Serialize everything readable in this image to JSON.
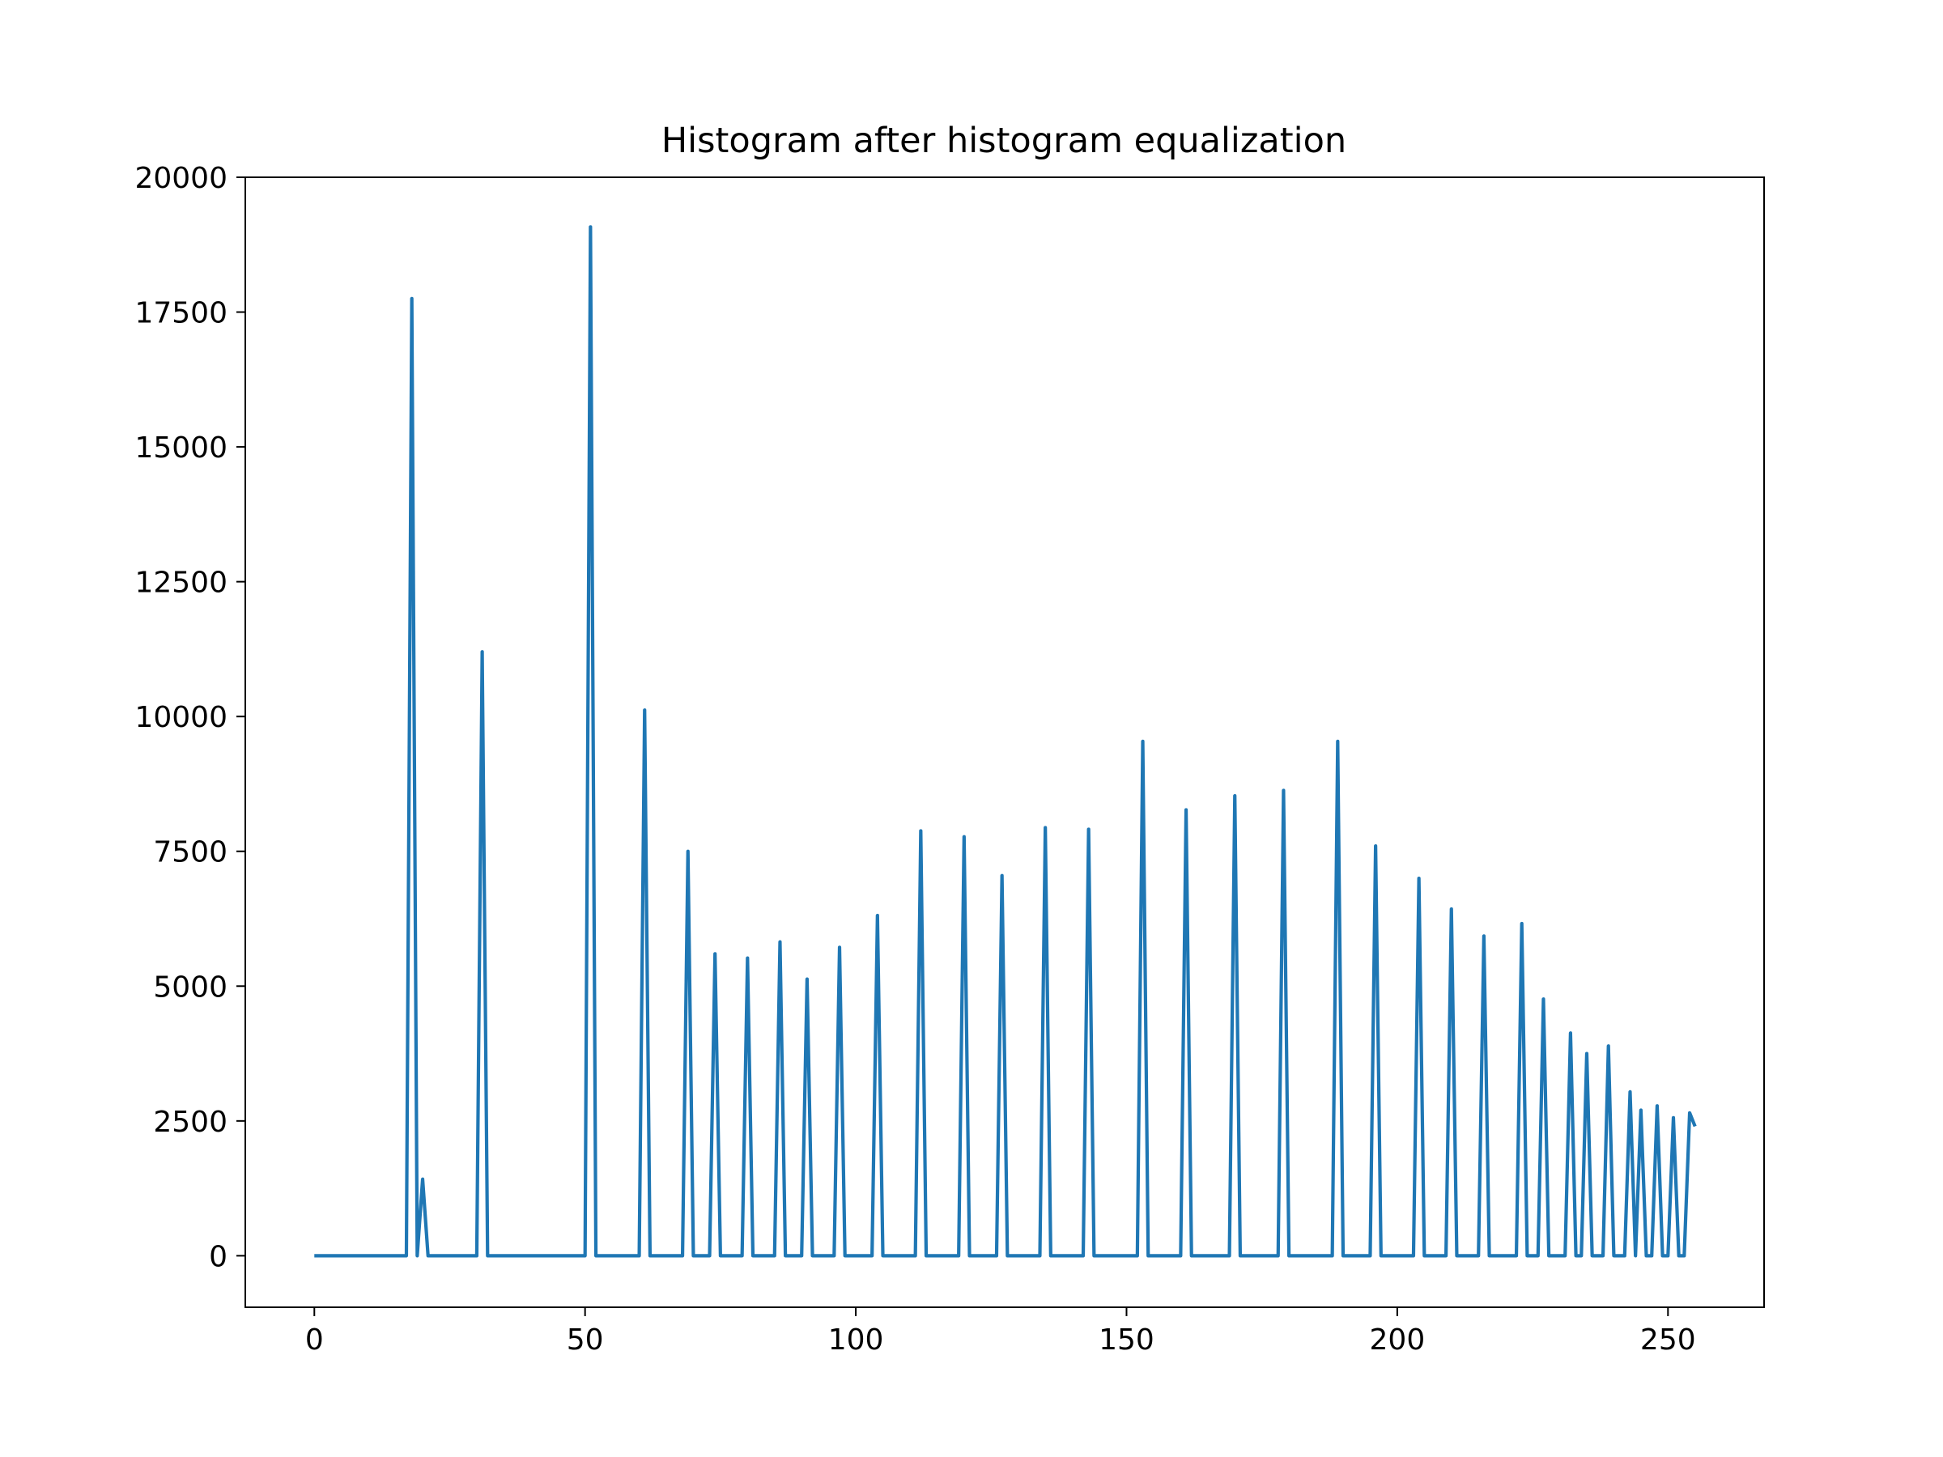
{
  "chart_data": {
    "type": "line",
    "title": "Histogram after histogram equalization",
    "xlabel": "",
    "ylabel": "",
    "xlim": [
      -12.75,
      267.75
    ],
    "ylim": [
      -955,
      20000
    ],
    "x_ticks": [
      0,
      50,
      100,
      150,
      200,
      250
    ],
    "y_ticks": [
      0,
      2500,
      5000,
      7500,
      10000,
      12500,
      15000,
      17500,
      20000
    ],
    "x_tick_labels": [
      "0",
      "50",
      "100",
      "150",
      "200",
      "250"
    ],
    "y_tick_labels": [
      "0",
      "2500",
      "5000",
      "7500",
      "10000",
      "12500",
      "15000",
      "17500",
      "20000"
    ],
    "grid": false,
    "legend": "none",
    "line_color": "#1f77b4",
    "series": [
      {
        "peaks": [
          [
            18,
            17750
          ],
          [
            20,
            1420
          ],
          [
            31,
            11200
          ],
          [
            51,
            19080
          ],
          [
            61,
            10120
          ],
          [
            69,
            7500
          ],
          [
            74,
            5600
          ],
          [
            80,
            5520
          ],
          [
            86,
            5820
          ],
          [
            91,
            5130
          ],
          [
            97,
            5720
          ],
          [
            104,
            6310
          ],
          [
            112,
            7880
          ],
          [
            120,
            7770
          ],
          [
            127,
            7050
          ],
          [
            135,
            7940
          ],
          [
            143,
            7910
          ],
          [
            153,
            9540
          ],
          [
            161,
            8270
          ],
          [
            170,
            8530
          ],
          [
            179,
            8630
          ],
          [
            189,
            9540
          ],
          [
            196,
            7600
          ],
          [
            204,
            7000
          ],
          [
            210,
            6430
          ],
          [
            216,
            5930
          ],
          [
            223,
            6160
          ],
          [
            227,
            4760
          ],
          [
            232,
            4130
          ],
          [
            235,
            3750
          ],
          [
            239,
            3890
          ],
          [
            243,
            3040
          ],
          [
            245,
            2700
          ],
          [
            248,
            2780
          ],
          [
            251,
            2560
          ],
          [
            254,
            2650
          ],
          [
            255,
            2400
          ]
        ]
      }
    ]
  }
}
